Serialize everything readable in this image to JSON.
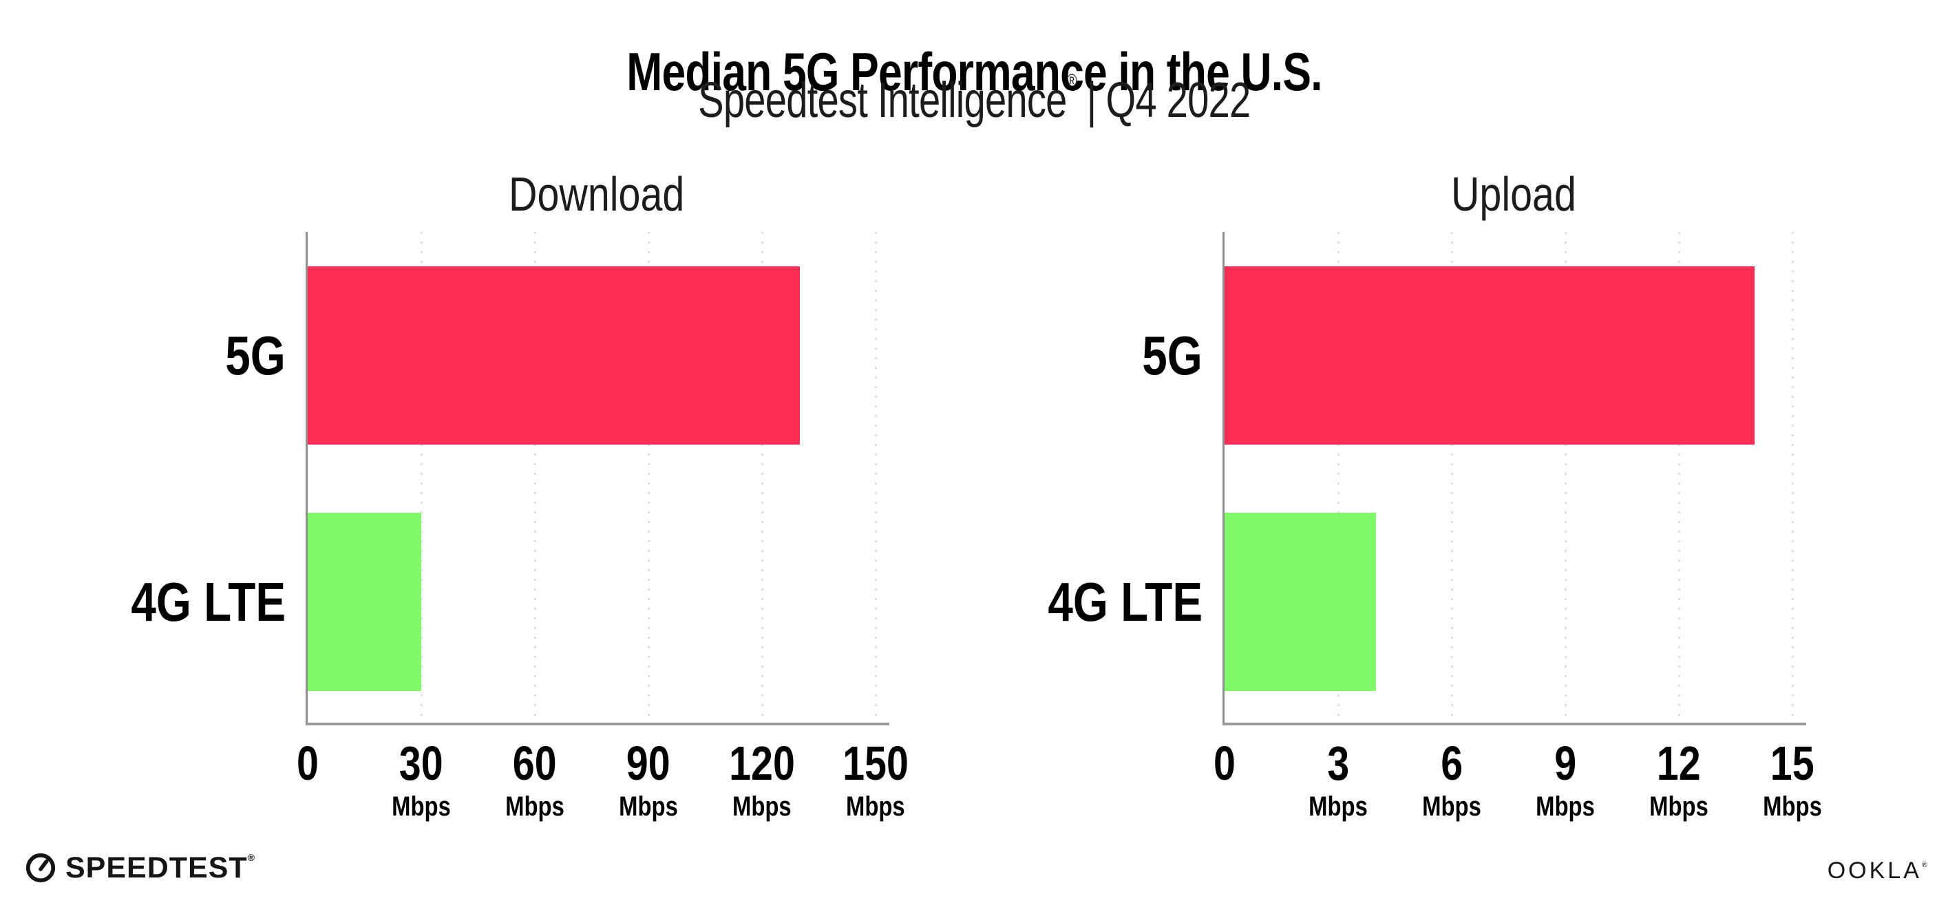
{
  "header": {
    "title": "Median 5G Performance in the U.S.",
    "subtitle_brand": "Speedtest Intelligence",
    "subtitle_reg": "®",
    "subtitle_sep": "|",
    "subtitle_period": "Q4 2022"
  },
  "chart_data": [
    {
      "type": "bar",
      "orientation": "horizontal",
      "title": "Download",
      "categories": [
        "5G",
        "4G LTE"
      ],
      "values": [
        130,
        30
      ],
      "unit": "Mbps",
      "xlim": [
        0,
        150
      ],
      "xticks": [
        {
          "v": 0,
          "label": "0",
          "unit": ""
        },
        {
          "v": 30,
          "label": "30",
          "unit": "Mbps"
        },
        {
          "v": 60,
          "label": "60",
          "unit": "Mbps"
        },
        {
          "v": 90,
          "label": "90",
          "unit": "Mbps"
        },
        {
          "v": 120,
          "label": "120",
          "unit": "Mbps"
        },
        {
          "v": 150,
          "label": "150",
          "unit": "Mbps"
        }
      ],
      "bar_colors": [
        "#FD2E56",
        "#80FA68"
      ],
      "grid": "dotted-vertical",
      "legend": "none"
    },
    {
      "type": "bar",
      "orientation": "horizontal",
      "title": "Upload",
      "categories": [
        "5G",
        "4G LTE"
      ],
      "values": [
        14,
        4
      ],
      "unit": "Mbps",
      "xlim": [
        0,
        15
      ],
      "xticks": [
        {
          "v": 0,
          "label": "0",
          "unit": ""
        },
        {
          "v": 3,
          "label": "3",
          "unit": "Mbps"
        },
        {
          "v": 6,
          "label": "6",
          "unit": "Mbps"
        },
        {
          "v": 9,
          "label": "9",
          "unit": "Mbps"
        },
        {
          "v": 12,
          "label": "12",
          "unit": "Mbps"
        },
        {
          "v": 15,
          "label": "15",
          "unit": "Mbps"
        }
      ],
      "bar_colors": [
        "#FD2E56",
        "#80FA68"
      ],
      "grid": "dotted-vertical",
      "legend": "none"
    }
  ],
  "footer": {
    "speedtest_label": "SPEEDTEST",
    "speedtest_tm": "®",
    "ookla_label": "OOKLA",
    "ookla_tm": "®"
  },
  "colors": {
    "bar_5g": "#FD2E56",
    "bar_4g_lte": "#80FA68",
    "axis": "#8f8f8f",
    "gridline": "#dcdbe6",
    "text": "#000000",
    "background": "#ffffff"
  }
}
